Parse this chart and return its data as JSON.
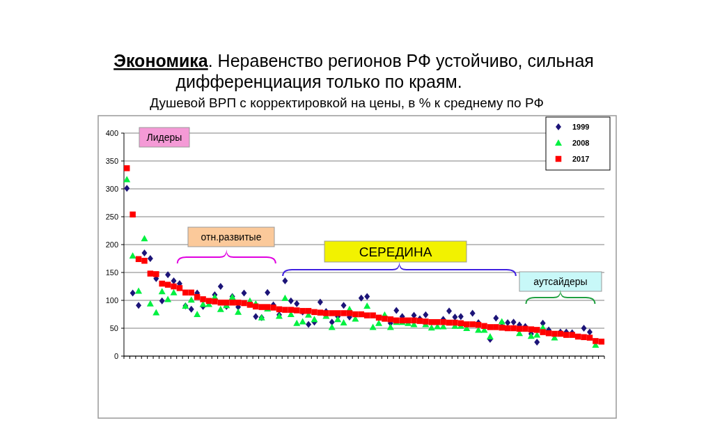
{
  "chart_data": {
    "type": "scatter",
    "title": "Экономика. Неравенство регионов РФ устойчиво, сильная дифференциация только по краям.",
    "subtitle": "Душевой ВРП с корректировкой на цены, в % к среднему по РФ",
    "categories": [
      null,
      null,
      null,
      null,
      null,
      null,
      null,
      null,
      null,
      null,
      null,
      null,
      null,
      null,
      null,
      null,
      null,
      null,
      null,
      null,
      null,
      null,
      null,
      null,
      null,
      null,
      null,
      null,
      null,
      null,
      null,
      null,
      null,
      null,
      null,
      null,
      null,
      null,
      null,
      null,
      null,
      null,
      null,
      null,
      null,
      null,
      null,
      null,
      null,
      null,
      null,
      null,
      null,
      null,
      null,
      null,
      null,
      null,
      null,
      null,
      null,
      null,
      null,
      null,
      null,
      null,
      null,
      null,
      null,
      null,
      null,
      null,
      null,
      null,
      null,
      null,
      null,
      null,
      null,
      null,
      null,
      null
    ],
    "series": [
      {
        "name": "1999",
        "color": "#1c1478",
        "marker": "diamond",
        "values": [
          301,
          113,
          91,
          185,
          175,
          139,
          99,
          146,
          135,
          130,
          90,
          84,
          113,
          89,
          null,
          110,
          125,
          89,
          107,
          88,
          113,
          null,
          71,
          69,
          114,
          92,
          74,
          135,
          99,
          94,
          79,
          57,
          61,
          97,
          80,
          61,
          71,
          91,
          70,
          null,
          104,
          107,
          null,
          null,
          null,
          59,
          82,
          71,
          null,
          73,
          67,
          74,
          null,
          null,
          66,
          81,
          70,
          71,
          null,
          77,
          60,
          null,
          30,
          68,
          60,
          60,
          61,
          56,
          53,
          40,
          25,
          59,
          47,
          null,
          43,
          43,
          42,
          null,
          50,
          43,
          null,
          null
        ]
      },
      {
        "name": "2008",
        "color": "#00f040",
        "marker": "triangle",
        "values": [
          317,
          180,
          117,
          211,
          94,
          78,
          116,
          102,
          114,
          null,
          90,
          101,
          75,
          93,
          93,
          106,
          84,
          91,
          106,
          79,
          null,
          99,
          94,
          69,
          85,
          null,
          72,
          104,
          75,
          59,
          62,
          74,
          66,
          null,
          72,
          52,
          66,
          60,
          84,
          67,
          null,
          90,
          52,
          59,
          74,
          52,
          61,
          61,
          59,
          57,
          null,
          57,
          51,
          53,
          53,
          null,
          54,
          54,
          50,
          null,
          47,
          47,
          35,
          null,
          62,
          null,
          null,
          41,
          null,
          36,
          38,
          51,
          null,
          33,
          null,
          null,
          null,
          null,
          null,
          null,
          20,
          null
        ]
      },
      {
        "name": "2017",
        "color": "#ff0000",
        "marker": "square",
        "values": [
          337,
          254,
          174,
          171,
          148,
          147,
          130,
          128,
          125,
          122,
          114,
          114,
          106,
          102,
          99,
          98,
          96,
          96,
          96,
          96,
          95,
          92,
          89,
          88,
          88,
          87,
          84,
          83,
          83,
          82,
          81,
          81,
          79,
          78,
          77,
          77,
          77,
          77,
          77,
          75,
          75,
          73,
          73,
          69,
          67,
          66,
          64,
          64,
          64,
          64,
          63,
          62,
          61,
          61,
          61,
          60,
          60,
          59,
          57,
          57,
          56,
          54,
          52,
          52,
          51,
          50,
          50,
          49,
          49,
          48,
          47,
          43,
          41,
          40,
          40,
          38,
          38,
          35,
          34,
          33,
          27,
          26
        ]
      }
    ],
    "ylim": [
      0,
      400
    ],
    "yticks": [
      0,
      50,
      100,
      150,
      200,
      250,
      300,
      350,
      400
    ],
    "grid": "y",
    "legend": "top right",
    "annotations": [
      "Лидеры",
      "отн.развитые",
      "СЕРЕДИНА",
      "аутсайдеры"
    ]
  }
}
